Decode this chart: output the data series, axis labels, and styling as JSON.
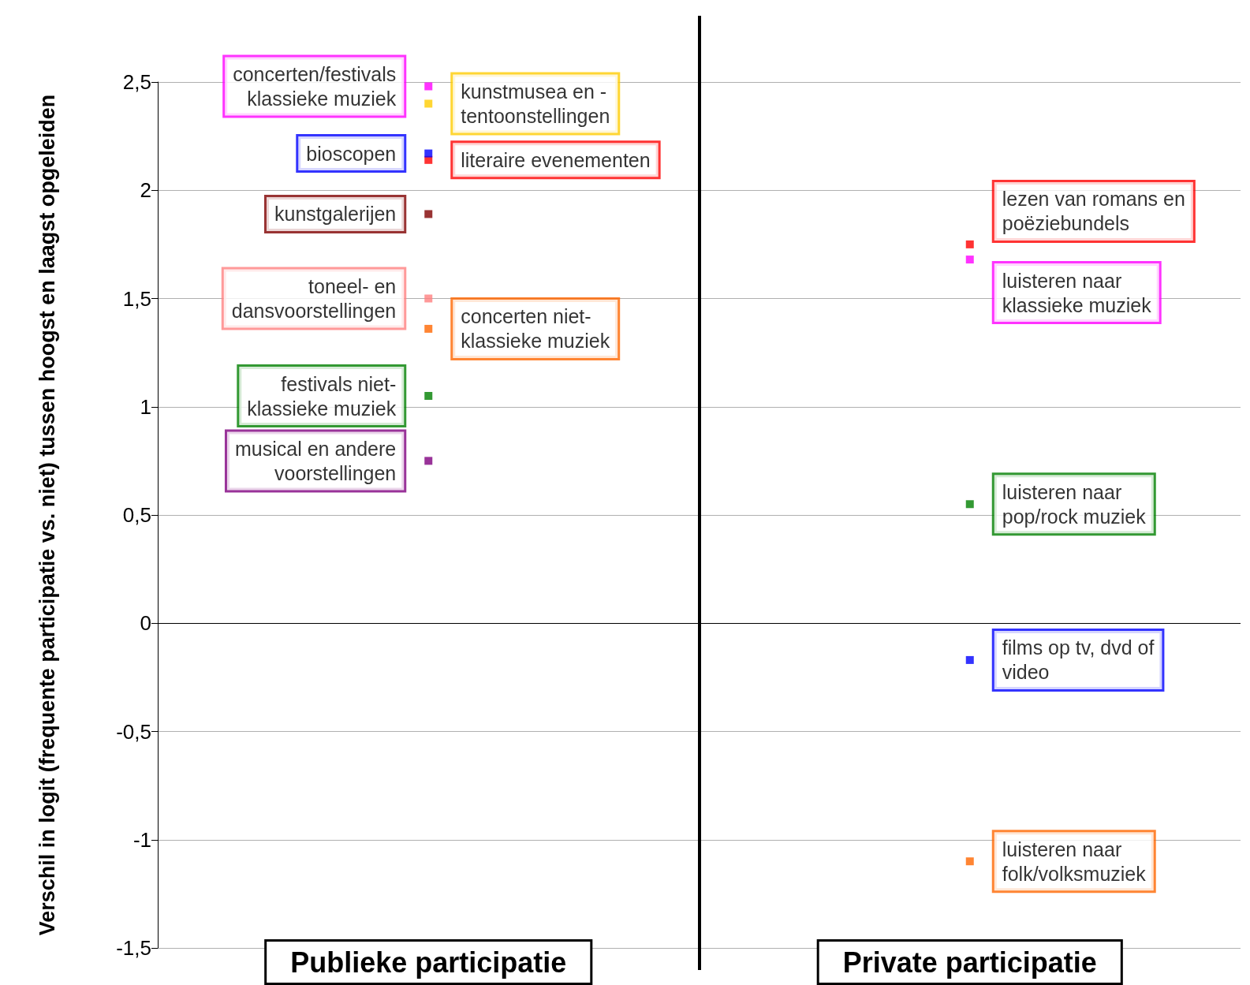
{
  "chart_data": {
    "type": "scatter",
    "ylabel": "Verschil in logit (frequente participatie vs. niet) tussen hoogst en laagst opgeleiden",
    "categories": [
      "Publieke participatie",
      "Private participatie"
    ],
    "series": [
      {
        "name": "concerten/festivals\nklassieke muziek",
        "color": "#ff00ff",
        "values": [
          2.48,
          null
        ]
      },
      {
        "name": "kunstmusea en -\ntentoonstellingen",
        "color": "#ffcc00",
        "values": [
          2.4,
          null
        ]
      },
      {
        "name": "bioscopen",
        "color": "#0000ff",
        "values": [
          2.17,
          null
        ]
      },
      {
        "name": "literaire evenementen",
        "color": "#ff0000",
        "values": [
          2.14,
          null
        ]
      },
      {
        "name": "kunstgalerijen",
        "color": "#800000",
        "values": [
          1.89,
          null
        ]
      },
      {
        "name": "toneel- en\ndansvoorstellingen",
        "color": "#ff8080",
        "values": [
          1.5,
          null
        ]
      },
      {
        "name": "concerten niet-\nklassieke muziek",
        "color": "#ff6600",
        "values": [
          1.36,
          null
        ]
      },
      {
        "name": "festivals niet-\nklassieke muziek",
        "color": "#008000",
        "values": [
          1.05,
          null
        ]
      },
      {
        "name": "musical en andere\nvoorstellingen",
        "color": "#800080",
        "values": [
          0.75,
          null
        ]
      },
      {
        "name": "lezen van romans en\npoëziebundels",
        "color": "#ff0000",
        "values": [
          null,
          1.75
        ]
      },
      {
        "name": "luisteren naar\nklassieke muziek",
        "color": "#ff00ff",
        "values": [
          null,
          1.68
        ]
      },
      {
        "name": "luisteren naar\npop/rock muziek",
        "color": "#008000",
        "values": [
          null,
          0.55
        ]
      },
      {
        "name": "films op tv, dvd of\nvideo",
        "color": "#0000ff",
        "values": [
          null,
          -0.17
        ]
      },
      {
        "name": "luisteren naar\nfolk/volksmuziek",
        "color": "#ff6600",
        "values": [
          null,
          -1.1
        ]
      }
    ],
    "ylim": [
      -1.5,
      2.5
    ],
    "yticks": [
      {
        "value": -1.5,
        "label": "-1,5"
      },
      {
        "value": -1,
        "label": "-1"
      },
      {
        "value": -0.5,
        "label": "-0,5"
      },
      {
        "value": 0,
        "label": "0"
      },
      {
        "value": 0.5,
        "label": "0,5"
      },
      {
        "value": 1,
        "label": "1"
      },
      {
        "value": 1.5,
        "label": "1,5"
      },
      {
        "value": 2,
        "label": "2"
      },
      {
        "value": 2.5,
        "label": "2,5"
      }
    ],
    "ref_lines": [
      {
        "axis": "y",
        "value": 0,
        "color": "#000000"
      }
    ],
    "grid": "y",
    "legend": false,
    "marker": "square"
  }
}
